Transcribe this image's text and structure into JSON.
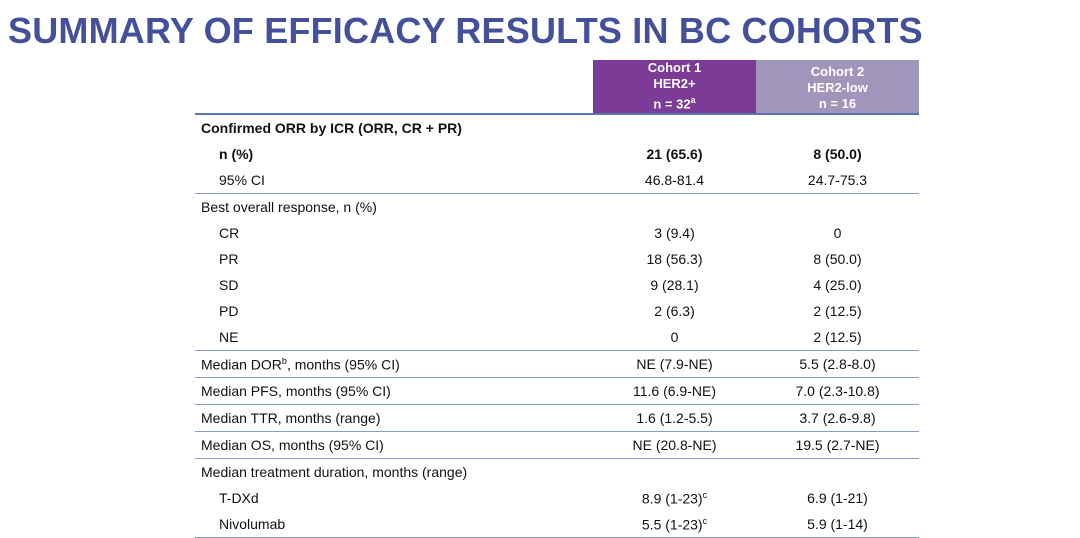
{
  "header": {
    "title": "SUMMARY OF EFFICACY RESULTS IN BC COHORTS"
  },
  "table": {
    "columns": [
      {
        "lines": [
          "Cohort 1",
          "HER2+",
          "n = 32"
        ],
        "sup": "a"
      },
      {
        "lines": [
          "Cohort 2",
          "HER2-low",
          "n = 16"
        ]
      }
    ],
    "sections": [
      {
        "heading": {
          "text": "Confirmed ORR by ICR (ORR, CR + PR)"
        },
        "rows": [
          {
            "label": "n (%)",
            "values": [
              {
                "text": "21 (65.6)"
              },
              {
                "text": "8 (50.0)"
              }
            ]
          },
          {
            "label": "95% CI",
            "values": [
              {
                "text": "46.8-81.4"
              },
              {
                "text": "24.7-75.3"
              }
            ]
          }
        ]
      },
      {
        "heading": {
          "text": "Best overall response, n (%)"
        },
        "rows": [
          {
            "label": "CR",
            "values": [
              {
                "text": "3 (9.4)"
              },
              {
                "text": "0"
              }
            ]
          },
          {
            "label": "PR",
            "values": [
              {
                "text": "18 (56.3)"
              },
              {
                "text": "8 (50.0)"
              }
            ]
          },
          {
            "label": "SD",
            "values": [
              {
                "text": "9 (28.1)"
              },
              {
                "text": "4 (25.0)"
              }
            ]
          },
          {
            "label": "PD",
            "values": [
              {
                "text": "2 (6.3)"
              },
              {
                "text": "2 (12.5)"
              }
            ]
          },
          {
            "label": "NE",
            "values": [
              {
                "text": "0"
              },
              {
                "text": "2 (12.5)"
              }
            ]
          }
        ]
      },
      {
        "heading": {
          "text": "Median DOR",
          "sup": "b",
          "rest": ", months (95% CI)"
        },
        "values": [
          {
            "text": "NE (7.9-NE)"
          },
          {
            "text": "5.5 (2.8-8.0)"
          }
        ]
      },
      {
        "heading": {
          "text": "Median PFS, months (95% CI)"
        },
        "values": [
          {
            "text": "11.6 (6.9-NE)"
          },
          {
            "text": "7.0 (2.3-10.8)"
          }
        ]
      },
      {
        "heading": {
          "text": "Median TTR, months (range)"
        },
        "values": [
          {
            "text": "1.6 (1.2-5.5)"
          },
          {
            "text": "3.7 (2.6-9.8)"
          }
        ]
      },
      {
        "heading": {
          "text": "Median OS, months (95% CI)"
        },
        "values": [
          {
            "text": "NE (20.8-NE)"
          },
          {
            "text": "19.5 (2.7-NE)"
          }
        ]
      },
      {
        "heading": {
          "text": "Median treatment duration, months (range)"
        },
        "rows": [
          {
            "label": "T-DXd",
            "values": [
              {
                "text": "8.9 (1-23)",
                "sup": "c"
              },
              {
                "text": "6.9 (1-21)"
              }
            ]
          },
          {
            "label": "Nivolumab",
            "values": [
              {
                "text": "5.5 (1-23)",
                "sup": "c"
              },
              {
                "text": "5.9 (1-14)"
              }
            ]
          }
        ]
      }
    ]
  }
}
